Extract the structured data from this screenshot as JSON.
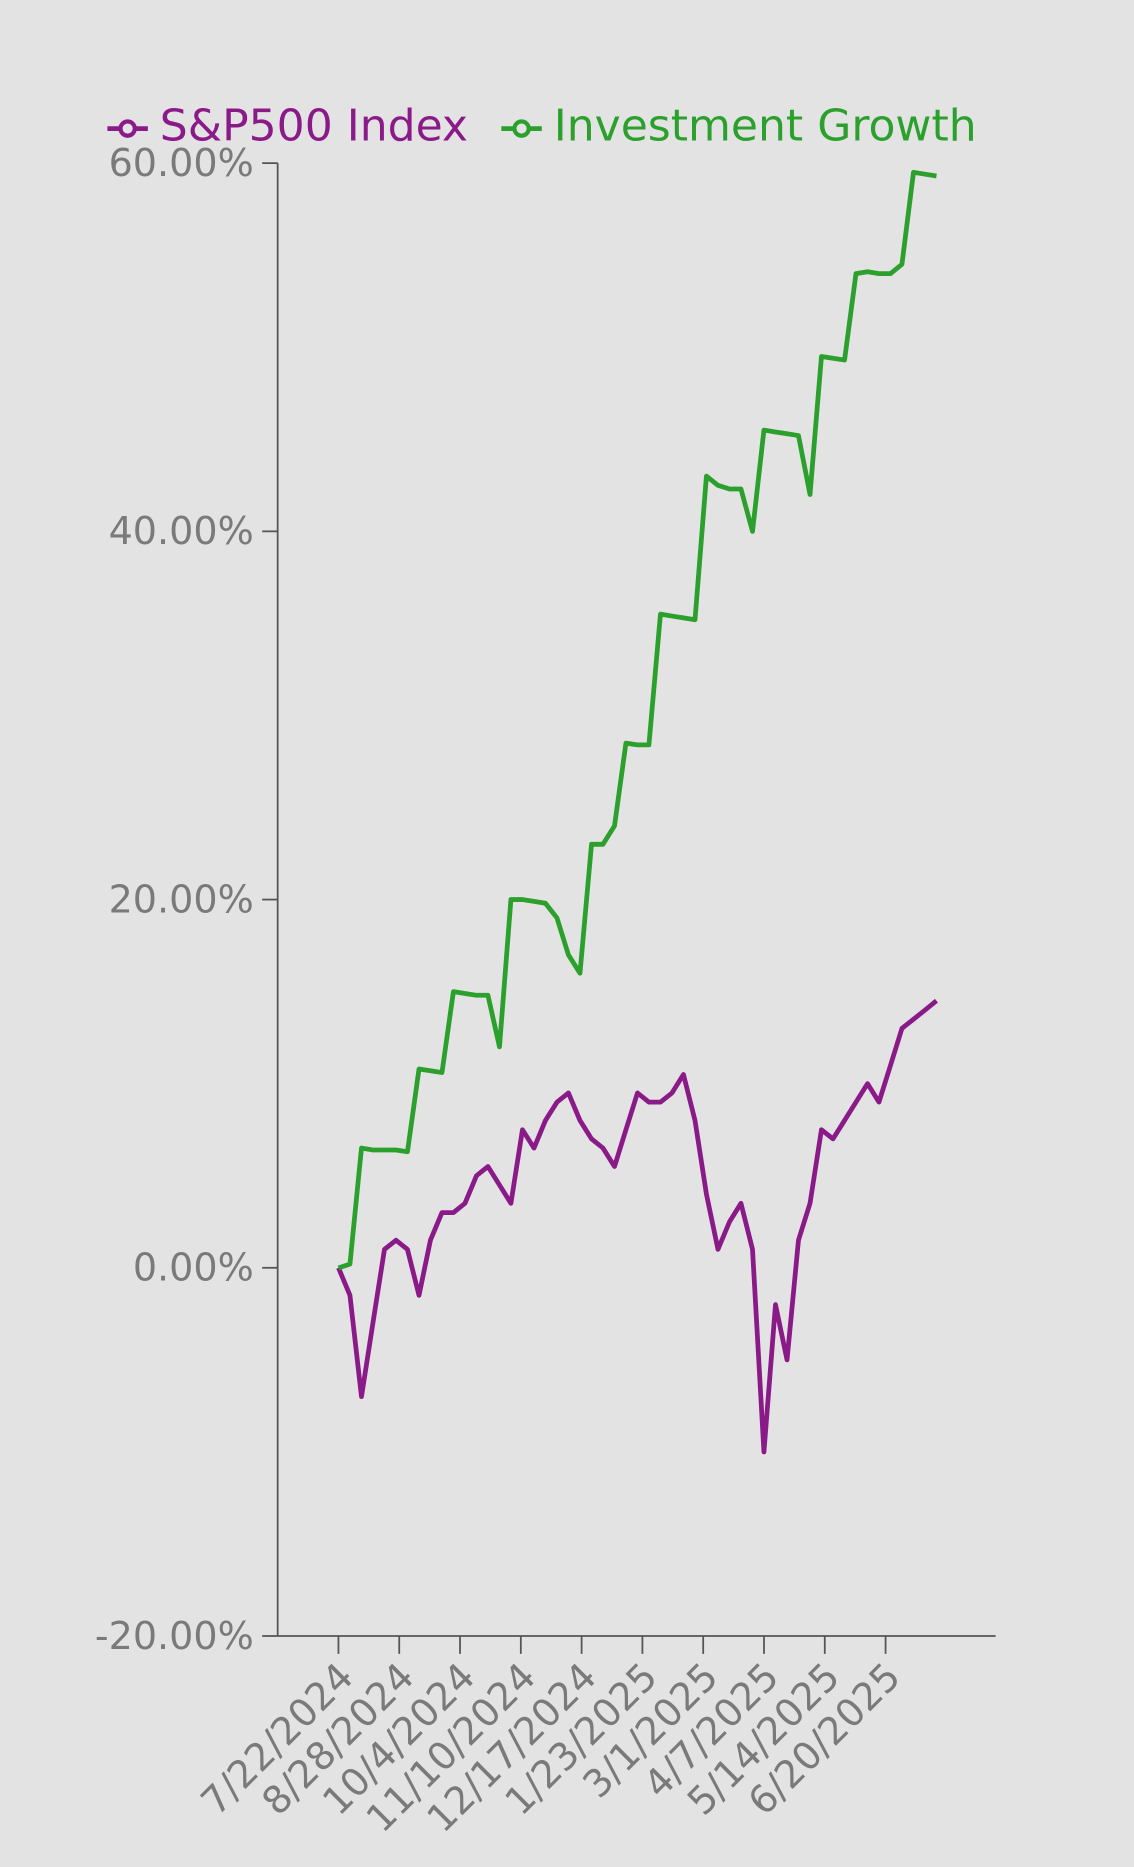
{
  "chart_data": {
    "type": "line",
    "x": [
      "7/22/2024",
      "7/29/2024",
      "8/5/2024",
      "8/12/2024",
      "8/19/2024",
      "8/26/2024",
      "9/2/2024",
      "9/9/2024",
      "9/16/2024",
      "9/23/2024",
      "9/30/2024",
      "10/7/2024",
      "10/14/2024",
      "10/21/2024",
      "10/28/2024",
      "11/4/2024",
      "11/11/2024",
      "11/18/2024",
      "11/25/2024",
      "12/2/2024",
      "12/9/2024",
      "12/16/2024",
      "12/23/2024",
      "12/30/2024",
      "1/6/2025",
      "1/13/2025",
      "1/20/2025",
      "1/27/2025",
      "2/3/2025",
      "2/10/2025",
      "2/17/2025",
      "2/24/2025",
      "3/3/2025",
      "3/10/2025",
      "3/17/2025",
      "3/24/2025",
      "3/31/2025",
      "4/7/2025",
      "4/14/2025",
      "4/21/2025",
      "4/28/2025",
      "5/5/2025",
      "5/12/2025",
      "5/19/2025",
      "5/26/2025",
      "6/2/2025",
      "6/9/2025",
      "6/16/2025",
      "6/23/2025",
      "6/30/2025",
      "7/7/2025",
      "7/14/2025",
      "7/21/2025"
    ],
    "series": [
      {
        "name": "S&P500 Index",
        "color": "#8b1a89",
        "values": [
          0,
          -1.5,
          -7,
          -3,
          1,
          1.5,
          1,
          -1.5,
          1.5,
          3,
          3,
          3.5,
          5,
          5.5,
          4.5,
          3.5,
          7.5,
          6.5,
          8,
          9,
          9.5,
          8,
          7,
          6.5,
          5.5,
          7.5,
          9.5,
          9,
          9,
          9.5,
          10.5,
          8,
          4,
          1,
          2.5,
          3.5,
          1,
          -10,
          -2,
          -5,
          1.5,
          3.5,
          7.5,
          7,
          8,
          9,
          10,
          9,
          11,
          13,
          13.5,
          14,
          14.5
        ]
      },
      {
        "name": "Investment Growth",
        "color": "#2ca02c",
        "values": [
          0,
          0.2,
          6.5,
          6.4,
          6.4,
          6.4,
          6.3,
          10.8,
          10.7,
          10.6,
          15,
          14.9,
          14.8,
          14.8,
          12,
          20,
          20,
          19.9,
          19.8,
          19,
          17,
          16,
          23,
          23,
          24,
          28.5,
          28.4,
          28.4,
          35.5,
          35.4,
          35.3,
          35.2,
          43,
          42.5,
          42.3,
          42.3,
          40,
          45.5,
          45.4,
          45.3,
          45.2,
          42,
          49.5,
          49.4,
          49.3,
          54,
          54.1,
          54,
          54,
          54.5,
          59.5,
          59.4,
          59.3
        ]
      }
    ],
    "xlim": [
      "6/15/2024",
      "8/26/2025"
    ],
    "xticks": [
      "7/22/2024",
      "8/28/2024",
      "10/4/2024",
      "11/10/2024",
      "12/17/2024",
      "1/23/2025",
      "3/1/2025",
      "4/7/2025",
      "5/14/2025",
      "6/20/2025"
    ],
    "ylim": [
      -20,
      60
    ],
    "yticks": [
      {
        "value": -20,
        "label": "-20.00%"
      },
      {
        "value": 0,
        "label": "0.00%"
      },
      {
        "value": 20,
        "label": "20.00%"
      },
      {
        "value": 40,
        "label": "40.00%"
      },
      {
        "value": 60,
        "label": "60.00%"
      }
    ],
    "legend": "top-left"
  }
}
